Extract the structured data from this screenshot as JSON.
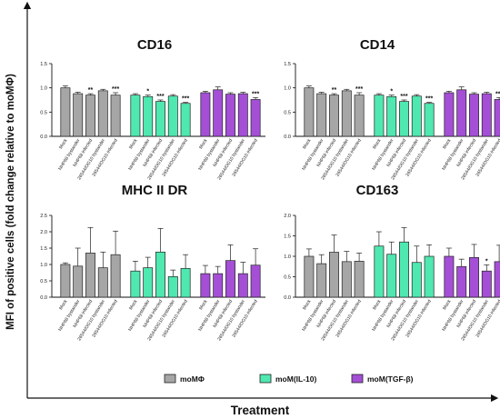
{
  "figure": {
    "ylabel": "MFI of positive cells (fold change relative to moMΦ)",
    "xlabel": "Treatment"
  },
  "colors": {
    "moMΦ": "#a6a6a6",
    "moM(IL-10)": "#4fe8b0",
    "moM(TGF-β)": "#a44fd6",
    "axis": "#111111"
  },
  "legend": [
    "moMΦ",
    "moM(IL-10)",
    "moM(TGF-β)"
  ],
  "chart_data": [
    {
      "type": "bar",
      "title": "CD16",
      "ylim": [
        0,
        1.5
      ],
      "yticks": [
        "0.0",
        "0.5",
        "1.0",
        "1.5"
      ],
      "categories": [
        "Mock",
        "NHP68 bystander",
        "NHP68 infected",
        "26544/OG10 bystander",
        "26544/OG10 infected"
      ],
      "series": [
        {
          "name": "moMΦ",
          "values": [
            1.0,
            0.88,
            0.85,
            0.94,
            0.85
          ],
          "errors": [
            0.04,
            0.03,
            0.03,
            0.03,
            0.05
          ],
          "significance": [
            "",
            "",
            "**",
            "",
            "***"
          ]
        },
        {
          "name": "moM(IL-10)",
          "values": [
            0.85,
            0.82,
            0.72,
            0.83,
            0.68
          ],
          "errors": [
            0.03,
            0.03,
            0.03,
            0.03,
            0.02
          ],
          "significance": [
            "",
            "*",
            "***",
            "",
            "***"
          ]
        },
        {
          "name": "moM(TGF-β)",
          "values": [
            0.9,
            0.96,
            0.87,
            0.88,
            0.76
          ],
          "errors": [
            0.03,
            0.06,
            0.03,
            0.03,
            0.04
          ],
          "significance": [
            "",
            "",
            "",
            "",
            "***"
          ]
        }
      ]
    },
    {
      "type": "bar",
      "title": "CD14",
      "ylim": [
        0,
        1.5
      ],
      "yticks": [
        "0.0",
        "0.5",
        "1.0",
        "1.5"
      ],
      "categories": [
        "Mock",
        "NHP68 bystander",
        "NHP68 infected",
        "26544/OG10 bystander",
        "26544/OG10 infected"
      ],
      "series": [
        {
          "name": "moMΦ",
          "values": [
            1.0,
            0.88,
            0.85,
            0.94,
            0.85
          ],
          "errors": [
            0.04,
            0.03,
            0.03,
            0.03,
            0.05
          ],
          "significance": [
            "",
            "",
            "**",
            "",
            "***"
          ]
        },
        {
          "name": "moM(IL-10)",
          "values": [
            0.85,
            0.82,
            0.72,
            0.83,
            0.68
          ],
          "errors": [
            0.03,
            0.03,
            0.03,
            0.03,
            0.02
          ],
          "significance": [
            "",
            "*",
            "***",
            "",
            "***"
          ]
        },
        {
          "name": "moM(TGF-β)",
          "values": [
            0.9,
            0.96,
            0.87,
            0.88,
            0.76
          ],
          "errors": [
            0.03,
            0.06,
            0.03,
            0.03,
            0.04
          ],
          "significance": [
            "",
            "",
            "",
            "",
            "***"
          ]
        }
      ]
    },
    {
      "type": "bar",
      "title": "MHC II DR",
      "ylim": [
        0,
        2.5
      ],
      "yticks": [
        "0.0",
        "0.5",
        "1.0",
        "1.5",
        "2.0",
        "2.5"
      ],
      "categories": [
        "Mock",
        "NHP68 bystander",
        "NHP68 infected",
        "26544/OG10 bystander",
        "26544/OG10 infected"
      ],
      "series": [
        {
          "name": "moMΦ",
          "values": [
            1.0,
            0.95,
            1.35,
            0.9,
            1.3
          ],
          "errors": [
            0.05,
            0.55,
            0.78,
            0.48,
            0.72
          ],
          "significance": [
            "",
            "",
            "",
            "",
            ""
          ]
        },
        {
          "name": "moM(IL-10)",
          "values": [
            0.8,
            0.9,
            1.38,
            0.63,
            0.88
          ],
          "errors": [
            0.3,
            0.32,
            0.72,
            0.2,
            0.42
          ],
          "significance": [
            "",
            "",
            "",
            "",
            ""
          ]
        },
        {
          "name": "moM(TGF-β)",
          "values": [
            0.72,
            0.72,
            1.12,
            0.72,
            0.98
          ],
          "errors": [
            0.25,
            0.22,
            0.48,
            0.35,
            0.5
          ],
          "significance": [
            "",
            "",
            "",
            "",
            ""
          ]
        }
      ]
    },
    {
      "type": "bar",
      "title": "CD163",
      "ylim": [
        0,
        2.0
      ],
      "yticks": [
        "0.0",
        "0.5",
        "1.0",
        "1.5",
        "2.0"
      ],
      "categories": [
        "Mock",
        "NHP68 bystander",
        "NHP68 infected",
        "26544/OG10 bystander",
        "26544/OG10 infected"
      ],
      "series": [
        {
          "name": "moMΦ",
          "values": [
            1.0,
            0.82,
            1.1,
            0.87,
            0.88
          ],
          "errors": [
            0.18,
            0.22,
            0.42,
            0.25,
            0.2
          ],
          "significance": [
            "",
            "",
            "",
            "",
            ""
          ]
        },
        {
          "name": "moM(IL-10)",
          "values": [
            1.25,
            1.05,
            1.35,
            0.85,
            1.0
          ],
          "errors": [
            0.35,
            0.3,
            0.35,
            0.4,
            0.28
          ],
          "significance": [
            "",
            "",
            "",
            "",
            ""
          ]
        },
        {
          "name": "moM(TGF-β)",
          "values": [
            1.0,
            0.75,
            0.97,
            0.64,
            0.87
          ],
          "errors": [
            0.2,
            0.18,
            0.32,
            0.15,
            0.4
          ],
          "significance": [
            "",
            "",
            "",
            "*",
            ""
          ]
        }
      ]
    }
  ]
}
